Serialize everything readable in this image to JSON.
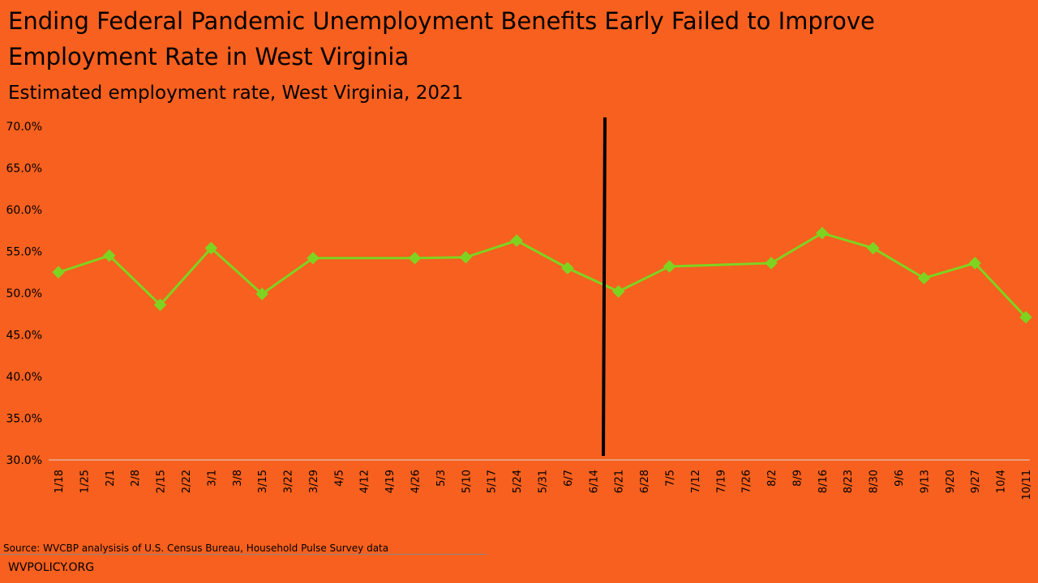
{
  "chart_data": {
    "type": "line",
    "title": "Ending Federal Pandemic Unemployment Benefits Early Failed to Improve Employment Rate in West Virginia",
    "subtitle": "Estimated employment rate, West Virginia, 2021",
    "xlabel": "",
    "ylabel": "",
    "ylim": [
      30,
      70
    ],
    "yticks": [
      "30.0%",
      "35.0%",
      "40.0%",
      "45.0%",
      "50.0%",
      "55.0%",
      "60.0%",
      "65.0%",
      "70.0%"
    ],
    "categories": [
      "1/18",
      "1/25",
      "2/1",
      "2/8",
      "2/15",
      "2/22",
      "3/1",
      "3/8",
      "3/15",
      "3/22",
      "3/29",
      "4/5",
      "4/12",
      "4/19",
      "4/26",
      "5/3",
      "5/10",
      "5/17",
      "5/24",
      "5/31",
      "6/7",
      "6/14",
      "6/21",
      "6/28",
      "7/5",
      "7/12",
      "7/19",
      "7/26",
      "8/2",
      "8/9",
      "8/16",
      "8/23",
      "8/30",
      "9/6",
      "9/13",
      "9/20",
      "9/27",
      "10/4",
      "10/11"
    ],
    "series": [
      {
        "name": "Employment rate",
        "color": "#7ed321",
        "values": [
          52.4,
          null,
          54.4,
          null,
          48.5,
          null,
          55.3,
          null,
          49.8,
          null,
          54.1,
          null,
          null,
          null,
          54.1,
          null,
          54.2,
          null,
          56.2,
          null,
          52.9,
          null,
          50.1,
          null,
          53.1,
          null,
          null,
          null,
          53.5,
          null,
          57.1,
          null,
          55.3,
          null,
          51.7,
          null,
          53.5,
          null,
          47.0
        ]
      }
    ],
    "reference_line": {
      "between": [
        "6/14",
        "6/21"
      ],
      "color": "#000000"
    },
    "grid": false,
    "legend": "none"
  },
  "footer": {
    "source": "Source: WVCBP analysisis of U.S. Census Bureau, Household Pulse Survey data",
    "site": "WVPOLICY.ORG"
  }
}
